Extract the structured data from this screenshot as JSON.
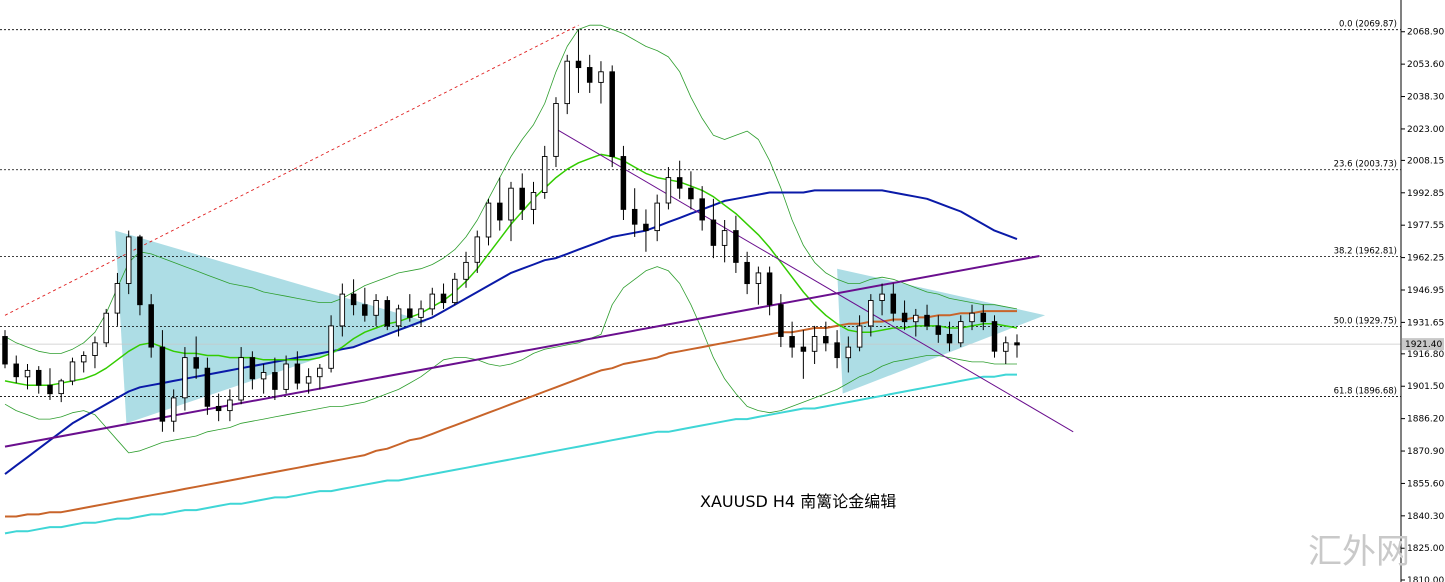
{
  "chart_data": {
    "type": "candlestick",
    "caption": "XAUUSD  H4  南篱论金编辑",
    "watermark": "汇外网",
    "symbol": "XAUUSD",
    "timeframe": "H4",
    "ylim": [
      1810.0,
      2082.0
    ],
    "y_ticks": [
      "2068.90",
      "2053.60",
      "2038.30",
      "2023.00",
      "2008.15",
      "1992.85",
      "1977.55",
      "1962.25",
      "1946.95",
      "1931.65",
      "1916.80",
      "1901.50",
      "1886.20",
      "1870.90",
      "1855.60",
      "1840.30",
      "1825.00",
      "1810.00"
    ],
    "current_price": 1921.4,
    "current_price_label": "1921.40",
    "fib_levels": [
      {
        "label": "0.0 (2069.87)",
        "value": 2069.87
      },
      {
        "label": "23.6 (2003.73)",
        "value": 2003.73
      },
      {
        "label": "38.2 (1962.81)",
        "value": 1962.81
      },
      {
        "label": "50.0 (1929.75)",
        "value": 1929.75
      },
      {
        "label": "61.8 (1896.68)",
        "value": 1896.68
      }
    ],
    "colors": {
      "fast_ma": "#33cc00",
      "mid_ma": "#0a1aa8",
      "slow_ma": "#c8642a",
      "long_ma": "#3fd6d6",
      "bollinger": "#2e9e2e",
      "trendline": "#6a0f8e",
      "channel_ref": "#e02020",
      "triangle": "#9fd7e0",
      "candle": "#000000",
      "grid": "#000000"
    },
    "candles": [
      [
        1925,
        1928,
        1910,
        1912
      ],
      [
        1912,
        1916,
        1903,
        1906
      ],
      [
        1906,
        1912,
        1900,
        1909
      ],
      [
        1909,
        1911,
        1898,
        1902
      ],
      [
        1902,
        1910,
        1895,
        1898
      ],
      [
        1898,
        1905,
        1894,
        1904
      ],
      [
        1904,
        1915,
        1902,
        1913
      ],
      [
        1913,
        1918,
        1908,
        1916
      ],
      [
        1916,
        1925,
        1910,
        1922
      ],
      [
        1922,
        1938,
        1920,
        1936
      ],
      [
        1936,
        1955,
        1930,
        1950
      ],
      [
        1950,
        1975,
        1945,
        1972
      ],
      [
        1972,
        1973,
        1935,
        1940
      ],
      [
        1940,
        1945,
        1915,
        1920
      ],
      [
        1920,
        1928,
        1880,
        1885
      ],
      [
        1885,
        1900,
        1880,
        1896
      ],
      [
        1896,
        1920,
        1890,
        1915
      ],
      [
        1915,
        1925,
        1905,
        1910
      ],
      [
        1910,
        1915,
        1888,
        1892
      ],
      [
        1892,
        1898,
        1885,
        1890
      ],
      [
        1890,
        1900,
        1885,
        1895
      ],
      [
        1895,
        1920,
        1893,
        1915
      ],
      [
        1915,
        1918,
        1900,
        1905
      ],
      [
        1905,
        1912,
        1898,
        1908
      ],
      [
        1908,
        1915,
        1895,
        1900
      ],
      [
        1900,
        1916,
        1898,
        1912
      ],
      [
        1912,
        1918,
        1900,
        1903
      ],
      [
        1903,
        1910,
        1898,
        1906
      ],
      [
        1906,
        1912,
        1900,
        1910
      ],
      [
        1910,
        1935,
        1908,
        1930
      ],
      [
        1930,
        1950,
        1925,
        1945
      ],
      [
        1945,
        1952,
        1935,
        1940
      ],
      [
        1940,
        1948,
        1932,
        1935
      ],
      [
        1935,
        1945,
        1930,
        1942
      ],
      [
        1942,
        1944,
        1928,
        1930
      ],
      [
        1930,
        1940,
        1925,
        1938
      ],
      [
        1938,
        1945,
        1932,
        1934
      ],
      [
        1934,
        1942,
        1930,
        1938
      ],
      [
        1938,
        1948,
        1935,
        1945
      ],
      [
        1945,
        1950,
        1938,
        1941
      ],
      [
        1941,
        1955,
        1940,
        1952
      ],
      [
        1952,
        1965,
        1948,
        1960
      ],
      [
        1960,
        1975,
        1955,
        1972
      ],
      [
        1972,
        1990,
        1968,
        1988
      ],
      [
        1988,
        2000,
        1975,
        1980
      ],
      [
        1980,
        1998,
        1970,
        1995
      ],
      [
        1995,
        2002,
        1980,
        1985
      ],
      [
        1985,
        1998,
        1978,
        1993
      ],
      [
        1993,
        2015,
        1990,
        2010
      ],
      [
        2010,
        2038,
        2005,
        2035
      ],
      [
        2035,
        2058,
        2030,
        2055
      ],
      [
        2055,
        2070,
        2040,
        2052
      ],
      [
        2052,
        2058,
        2040,
        2045
      ],
      [
        2045,
        2055,
        2035,
        2050
      ],
      [
        2050,
        2053,
        2005,
        2010
      ],
      [
        2010,
        2015,
        1980,
        1985
      ],
      [
        1985,
        1995,
        1972,
        1978
      ],
      [
        1978,
        1985,
        1965,
        1975
      ],
      [
        1975,
        1992,
        1970,
        1988
      ],
      [
        1988,
        2005,
        1985,
        2000
      ],
      [
        2000,
        2008,
        1990,
        1995
      ],
      [
        1995,
        2003,
        1985,
        1990
      ],
      [
        1990,
        1996,
        1975,
        1980
      ],
      [
        1980,
        1990,
        1962,
        1968
      ],
      [
        1968,
        1980,
        1960,
        1975
      ],
      [
        1975,
        1982,
        1955,
        1960
      ],
      [
        1960,
        1965,
        1945,
        1950
      ],
      [
        1950,
        1958,
        1940,
        1955
      ],
      [
        1955,
        1958,
        1935,
        1940
      ],
      [
        1940,
        1945,
        1920,
        1925
      ],
      [
        1925,
        1932,
        1915,
        1920
      ],
      [
        1920,
        1928,
        1905,
        1918
      ],
      [
        1918,
        1930,
        1912,
        1925
      ],
      [
        1925,
        1932,
        1918,
        1922
      ],
      [
        1922,
        1928,
        1910,
        1915
      ],
      [
        1915,
        1925,
        1908,
        1920
      ],
      [
        1920,
        1935,
        1918,
        1930
      ],
      [
        1930,
        1945,
        1925,
        1942
      ],
      [
        1942,
        1950,
        1935,
        1945
      ],
      [
        1945,
        1950,
        1932,
        1936
      ],
      [
        1936,
        1942,
        1928,
        1932
      ],
      [
        1932,
        1938,
        1925,
        1935
      ],
      [
        1935,
        1940,
        1928,
        1930
      ],
      [
        1930,
        1935,
        1922,
        1926
      ],
      [
        1926,
        1932,
        1918,
        1922
      ],
      [
        1922,
        1935,
        1920,
        1932
      ],
      [
        1932,
        1940,
        1928,
        1936
      ],
      [
        1936,
        1940,
        1928,
        1932
      ],
      [
        1932,
        1935,
        1915,
        1918
      ],
      [
        1918,
        1925,
        1912,
        1922
      ],
      [
        1922,
        1926,
        1915,
        1921
      ]
    ],
    "ma_fast": [
      1904,
      1903,
      1902,
      1902,
      1902,
      1903,
      1904,
      1905,
      1907,
      1910,
      1914,
      1918,
      1921,
      1922,
      1920,
      1918,
      1917,
      1917,
      1916,
      1916,
      1915,
      1915,
      1915,
      1914,
      1914,
      1914,
      1914,
      1914,
      1915,
      1917,
      1920,
      1924,
      1927,
      1929,
      1931,
      1932,
      1934,
      1936,
      1939,
      1942,
      1946,
      1951,
      1957,
      1964,
      1971,
      1978,
      1984,
      1990,
      1995,
      2000,
      2004,
      2007,
      2009,
      2011,
      2010,
      2008,
      2005,
      2002,
      2000,
      1999,
      1998,
      1996,
      1994,
      1991,
      1987,
      1983,
      1978,
      1973,
      1967,
      1960,
      1953,
      1946,
      1940,
      1935,
      1931,
      1928,
      1927,
      1927,
      1928,
      1929,
      1929,
      1930,
      1930,
      1930,
      1929,
      1929,
      1930,
      1931,
      1931,
      1930,
      1929
    ],
    "ma_mid": [
      1860,
      1864,
      1868,
      1872,
      1876,
      1880,
      1884,
      1887,
      1890,
      1893,
      1896,
      1899,
      1901,
      1902,
      1903,
      1904,
      1905,
      1906,
      1907,
      1908,
      1909,
      1910,
      1911,
      1912,
      1913,
      1914,
      1915,
      1916,
      1917,
      1918,
      1919,
      1920,
      1922,
      1924,
      1926,
      1928,
      1930,
      1932,
      1934,
      1937,
      1940,
      1943,
      1946,
      1949,
      1952,
      1955,
      1957,
      1959,
      1961,
      1962,
      1964,
      1966,
      1968,
      1970,
      1972,
      1973,
      1974,
      1975,
      1977,
      1979,
      1981,
      1983,
      1985,
      1987,
      1989,
      1990,
      1991,
      1992,
      1993,
      1993,
      1993,
      1993,
      1994,
      1994,
      1994,
      1994,
      1994,
      1994,
      1994,
      1993,
      1992,
      1991,
      1990,
      1988,
      1986,
      1984,
      1981,
      1978,
      1975,
      1973,
      1971
    ],
    "ma_slow": [
      1840,
      1840,
      1841,
      1841,
      1842,
      1842,
      1843,
      1844,
      1845,
      1846,
      1847,
      1848,
      1849,
      1850,
      1851,
      1852,
      1853,
      1854,
      1855,
      1856,
      1857,
      1858,
      1859,
      1860,
      1861,
      1862,
      1863,
      1864,
      1865,
      1866,
      1867,
      1868,
      1869,
      1871,
      1872,
      1874,
      1876,
      1877,
      1879,
      1881,
      1883,
      1885,
      1887,
      1889,
      1891,
      1893,
      1895,
      1897,
      1899,
      1901,
      1903,
      1905,
      1907,
      1909,
      1910,
      1912,
      1913,
      1914,
      1915,
      1917,
      1918,
      1919,
      1920,
      1921,
      1922,
      1923,
      1924,
      1925,
      1926,
      1927,
      1927,
      1928,
      1929,
      1929,
      1930,
      1931,
      1931,
      1932,
      1932,
      1933,
      1933,
      1934,
      1934,
      1935,
      1935,
      1936,
      1936,
      1937,
      1937,
      1937,
      1937
    ],
    "ma_long": [
      1832,
      1833,
      1833,
      1834,
      1835,
      1835,
      1836,
      1837,
      1837,
      1838,
      1839,
      1839,
      1840,
      1841,
      1841,
      1842,
      1843,
      1843,
      1844,
      1845,
      1846,
      1846,
      1847,
      1848,
      1849,
      1849,
      1850,
      1851,
      1852,
      1852,
      1853,
      1854,
      1855,
      1856,
      1857,
      1857,
      1858,
      1859,
      1860,
      1861,
      1862,
      1863,
      1864,
      1865,
      1866,
      1867,
      1868,
      1869,
      1870,
      1871,
      1872,
      1873,
      1874,
      1875,
      1876,
      1877,
      1878,
      1879,
      1880,
      1880,
      1881,
      1882,
      1883,
      1884,
      1885,
      1886,
      1886,
      1887,
      1888,
      1889,
      1890,
      1891,
      1891,
      1892,
      1893,
      1894,
      1895,
      1896,
      1897,
      1898,
      1899,
      1900,
      1901,
      1902,
      1903,
      1904,
      1905,
      1906,
      1906,
      1907,
      1907
    ],
    "bb_upper": [
      1925,
      1922,
      1920,
      1918,
      1917,
      1917,
      1919,
      1922,
      1927,
      1936,
      1948,
      1960,
      1965,
      1964,
      1962,
      1960,
      1958,
      1956,
      1954,
      1952,
      1950,
      1949,
      1948,
      1946,
      1945,
      1944,
      1943,
      1942,
      1941,
      1941,
      1943,
      1946,
      1949,
      1951,
      1953,
      1955,
      1956,
      1957,
      1959,
      1962,
      1966,
      1972,
      1980,
      1990,
      2000,
      2010,
      2018,
      2025,
      2035,
      2050,
      2062,
      2070,
      2072,
      2072,
      2070,
      2068,
      2065,
      2062,
      2060,
      2057,
      2050,
      2038,
      2028,
      2020,
      2018,
      2020,
      2022,
      2018,
      2008,
      1995,
      1980,
      1968,
      1960,
      1955,
      1952,
      1950,
      1950,
      1952,
      1953,
      1952,
      1950,
      1948,
      1946,
      1945,
      1943,
      1942,
      1941,
      1940,
      1940,
      1939,
      1938
    ],
    "bb_lower": [
      1893,
      1890,
      1888,
      1886,
      1886,
      1887,
      1889,
      1890,
      1888,
      1882,
      1876,
      1870,
      1871,
      1873,
      1875,
      1876,
      1877,
      1878,
      1880,
      1881,
      1882,
      1884,
      1885,
      1886,
      1887,
      1888,
      1889,
      1890,
      1891,
      1892,
      1892,
      1893,
      1894,
      1896,
      1898,
      1900,
      1903,
      1906,
      1910,
      1914,
      1915,
      1915,
      1914,
      1912,
      1911,
      1912,
      1914,
      1917,
      1919,
      1920,
      1921,
      1922,
      1924,
      1926,
      1940,
      1948,
      1952,
      1956,
      1958,
      1956,
      1950,
      1940,
      1928,
      1915,
      1905,
      1898,
      1892,
      1890,
      1889,
      1890,
      1892,
      1894,
      1896,
      1898,
      1900,
      1903,
      1906,
      1908,
      1911,
      1913,
      1914,
      1915,
      1916,
      1916,
      1915,
      1914,
      1913,
      1913,
      1912,
      1912,
      1912
    ],
    "trendlines": [
      {
        "kind": "support",
        "x": [
          0,
          92
        ],
        "y": [
          1873,
          1963
        ]
      },
      {
        "kind": "resistance",
        "x": [
          49,
          95
        ],
        "y": [
          2023,
          1880
        ]
      },
      {
        "kind": "channel-ref",
        "x": [
          0,
          51
        ],
        "y": [
          1935,
          2072
        ]
      }
    ],
    "triangles": [
      [
        [
          9.8,
          1975
        ],
        [
          10.8,
          1884
        ],
        [
          37.5,
          1932
        ]
      ],
      [
        [
          74,
          1957
        ],
        [
          74.5,
          1898
        ],
        [
          92.5,
          1935
        ]
      ]
    ]
  }
}
